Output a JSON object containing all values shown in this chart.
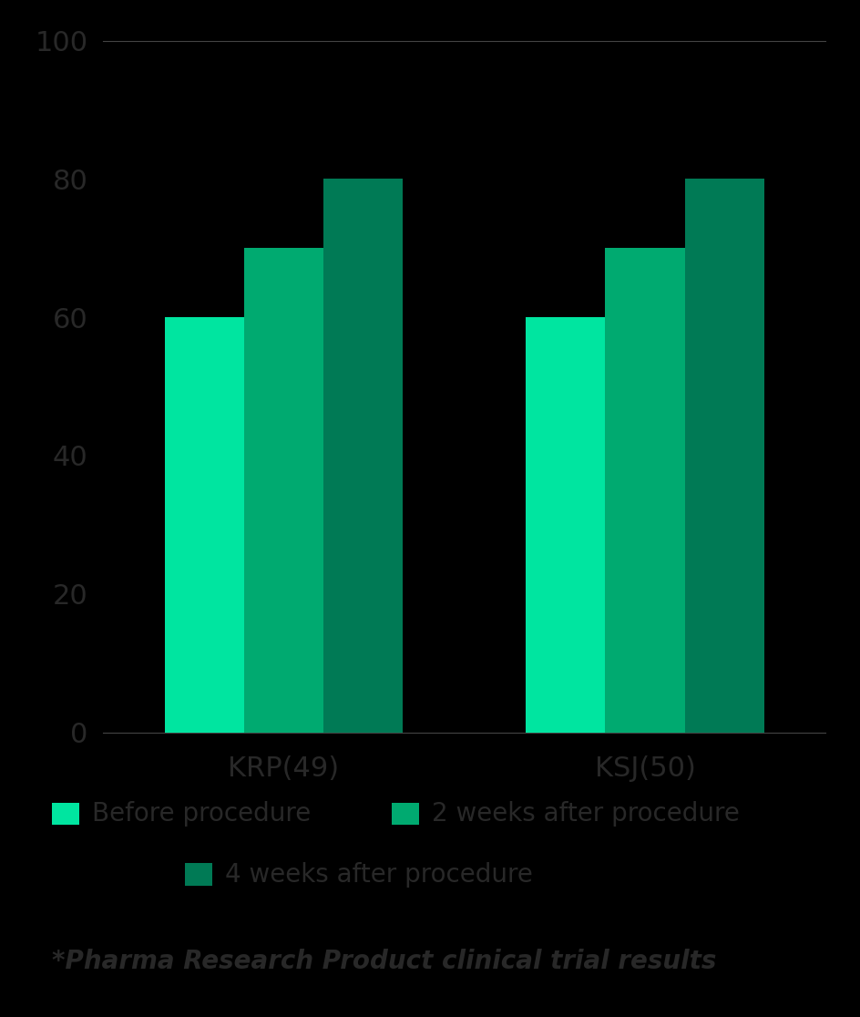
{
  "categories": [
    "KRP(49)",
    "KSJ(50)"
  ],
  "series": {
    "Before procedure": [
      60,
      60
    ],
    "2 weeks after procedure": [
      70,
      70
    ],
    "4 weeks after procedure": [
      80,
      80
    ]
  },
  "colors": {
    "Before procedure": "#00E5A0",
    "2 weeks after procedure": "#00AA70",
    "4 weeks after procedure": "#007A55"
  },
  "ylim": [
    0,
    100
  ],
  "yticks": [
    0,
    20,
    40,
    60,
    80,
    100
  ],
  "background_color": "#000000",
  "axis_text_color": "#282828",
  "footnote": "*Pharma Research Product clinical trial results",
  "bar_width": 0.22,
  "figsize": [
    9.44,
    11.16
  ],
  "dpi": 100
}
